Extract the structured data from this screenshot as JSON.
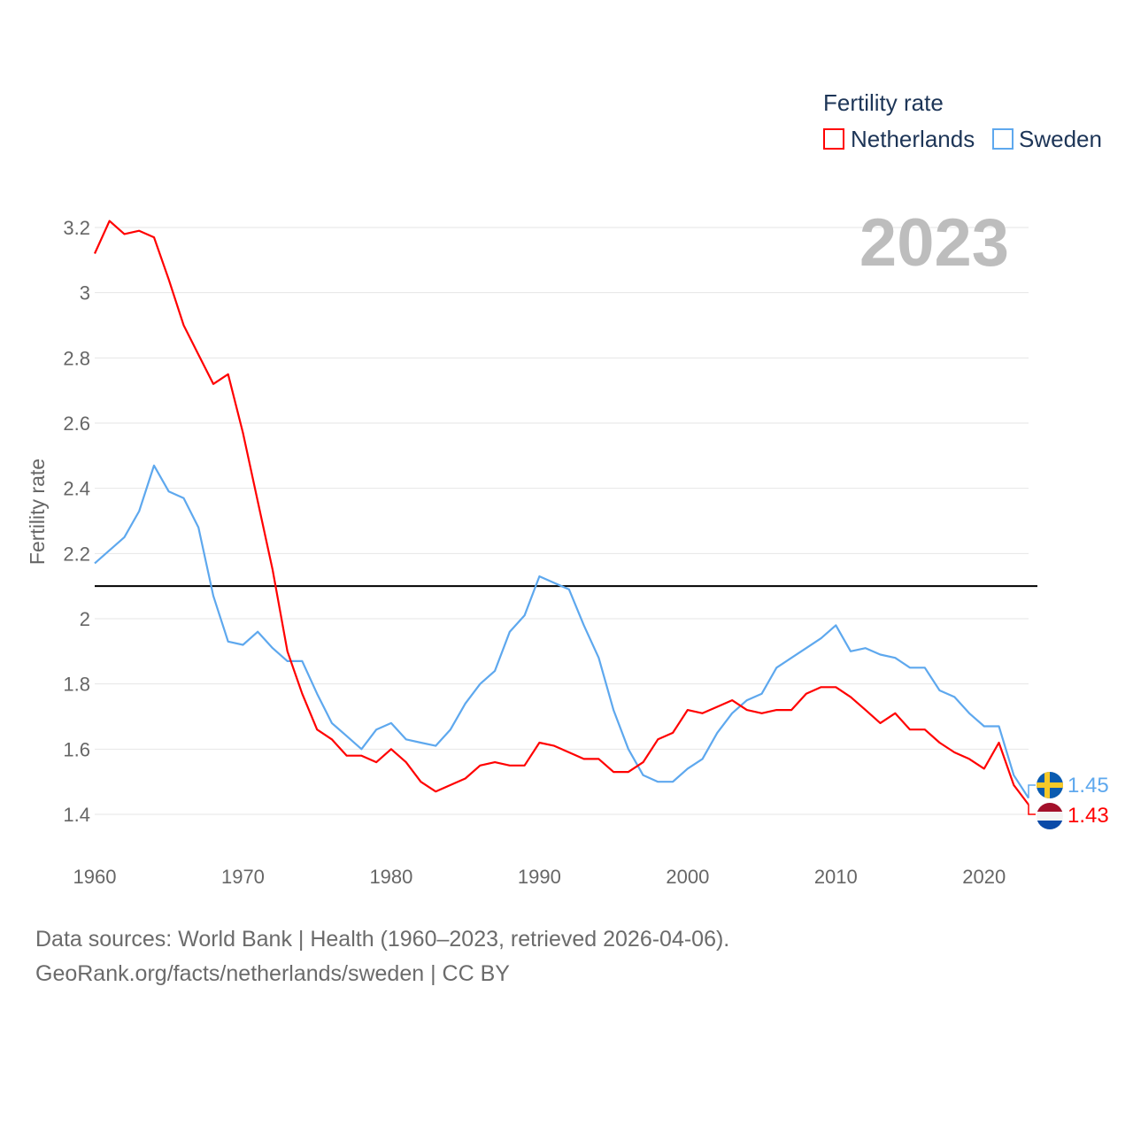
{
  "chart_data": {
    "type": "line",
    "title": "",
    "xlabel": "",
    "ylabel": "Fertility rate",
    "xlim": [
      1960,
      2023
    ],
    "ylim": [
      1.4,
      3.2
    ],
    "grid": true,
    "legend_title": "Fertility rate",
    "legend_position": "top-right",
    "year_label": "2023",
    "x_ticks": [
      "1960",
      "1970",
      "1980",
      "1990",
      "2000",
      "2010",
      "2020"
    ],
    "y_ticks": [
      "1.4",
      "1.6",
      "1.8",
      "2",
      "2.2",
      "2.4",
      "2.6",
      "2.8",
      "3",
      "3.2"
    ],
    "reference_line": 2.1,
    "x": [
      1960,
      1961,
      1962,
      1963,
      1964,
      1965,
      1966,
      1967,
      1968,
      1969,
      1970,
      1971,
      1972,
      1973,
      1974,
      1975,
      1976,
      1977,
      1978,
      1979,
      1980,
      1981,
      1982,
      1983,
      1984,
      1985,
      1986,
      1987,
      1988,
      1989,
      1990,
      1991,
      1992,
      1993,
      1994,
      1995,
      1996,
      1997,
      1998,
      1999,
      2000,
      2001,
      2002,
      2003,
      2004,
      2005,
      2006,
      2007,
      2008,
      2009,
      2010,
      2011,
      2012,
      2013,
      2014,
      2015,
      2016,
      2017,
      2018,
      2019,
      2020,
      2021,
      2022,
      2023
    ],
    "series": [
      {
        "name": "Netherlands",
        "color": "#ff0000",
        "end_label": "1.43",
        "values": [
          3.12,
          3.22,
          3.18,
          3.19,
          3.17,
          3.04,
          2.9,
          2.81,
          2.72,
          2.75,
          2.57,
          2.36,
          2.15,
          1.9,
          1.77,
          1.66,
          1.63,
          1.58,
          1.58,
          1.56,
          1.6,
          1.56,
          1.5,
          1.47,
          1.49,
          1.51,
          1.55,
          1.56,
          1.55,
          1.55,
          1.62,
          1.61,
          1.59,
          1.57,
          1.57,
          1.53,
          1.53,
          1.56,
          1.63,
          1.65,
          1.72,
          1.71,
          1.73,
          1.75,
          1.72,
          1.71,
          1.72,
          1.72,
          1.77,
          1.79,
          1.79,
          1.76,
          1.72,
          1.68,
          1.71,
          1.66,
          1.66,
          1.62,
          1.59,
          1.57,
          1.54,
          1.62,
          1.49,
          1.43
        ]
      },
      {
        "name": "Sweden",
        "color": "#5ea8ee",
        "end_label": "1.45",
        "values": [
          2.17,
          2.21,
          2.25,
          2.33,
          2.47,
          2.39,
          2.37,
          2.28,
          2.07,
          1.93,
          1.92,
          1.96,
          1.91,
          1.87,
          1.87,
          1.77,
          1.68,
          1.64,
          1.6,
          1.66,
          1.68,
          1.63,
          1.62,
          1.61,
          1.66,
          1.74,
          1.8,
          1.84,
          1.96,
          2.01,
          2.13,
          2.11,
          2.09,
          1.98,
          1.88,
          1.72,
          1.6,
          1.52,
          1.5,
          1.5,
          1.54,
          1.57,
          1.65,
          1.71,
          1.75,
          1.77,
          1.85,
          1.88,
          1.91,
          1.94,
          1.98,
          1.9,
          1.91,
          1.89,
          1.88,
          1.85,
          1.85,
          1.78,
          1.76,
          1.71,
          1.67,
          1.67,
          1.52,
          1.45
        ]
      }
    ]
  },
  "footer": {
    "line1": "Data sources: World Bank | Health (1960–2023, retrieved 2026-04-06).",
    "line2": "GeoRank.org/facts/netherlands/sweden | CC BY"
  }
}
